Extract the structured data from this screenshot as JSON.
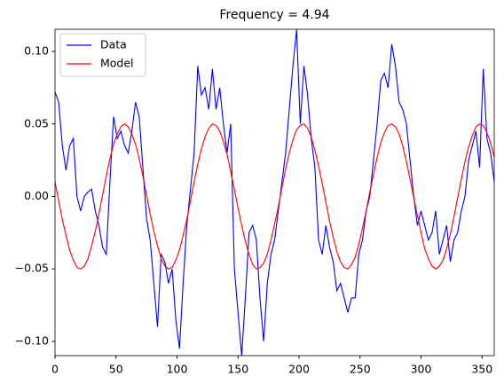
{
  "chart_data": {
    "type": "line",
    "title": "Frequency = 4.94",
    "x": [
      0,
      3,
      6,
      9,
      12,
      15,
      18,
      21,
      24,
      27,
      30,
      33,
      36,
      39,
      42,
      45,
      48,
      51,
      54,
      57,
      60,
      63,
      66,
      69,
      72,
      75,
      78,
      81,
      84,
      87,
      90,
      93,
      96,
      99,
      102,
      105,
      108,
      111,
      114,
      117,
      120,
      123,
      126,
      129,
      132,
      135,
      138,
      141,
      144,
      147,
      150,
      153,
      156,
      159,
      162,
      165,
      168,
      171,
      174,
      177,
      180,
      183,
      186,
      189,
      192,
      195,
      198,
      201,
      204,
      207,
      210,
      213,
      216,
      219,
      222,
      225,
      228,
      231,
      234,
      237,
      240,
      243,
      246,
      249,
      252,
      255,
      258,
      261,
      264,
      267,
      270,
      273,
      276,
      279,
      282,
      285,
      288,
      291,
      294,
      297,
      300,
      303,
      306,
      309,
      312,
      315,
      318,
      321,
      324,
      327,
      330,
      333,
      336,
      339,
      342,
      345,
      348,
      351,
      354,
      357,
      360
    ],
    "series": [
      {
        "name": "Data",
        "color": "#0000ff",
        "values": [
          0.072,
          0.065,
          0.035,
          0.018,
          0.035,
          0.04,
          0.0,
          -0.01,
          0.0,
          0.003,
          0.005,
          -0.01,
          -0.02,
          -0.035,
          -0.04,
          0.01,
          0.055,
          0.04,
          0.045,
          0.035,
          0.03,
          0.045,
          0.065,
          0.055,
          0.02,
          -0.015,
          -0.03,
          -0.06,
          -0.09,
          -0.04,
          -0.045,
          -0.06,
          -0.05,
          -0.085,
          -0.105,
          -0.06,
          -0.02,
          0.005,
          0.03,
          0.09,
          0.07,
          0.075,
          0.06,
          0.088,
          0.06,
          0.075,
          0.05,
          0.03,
          0.05,
          -0.05,
          -0.08,
          -0.11,
          -0.07,
          -0.025,
          -0.02,
          -0.03,
          -0.07,
          -0.1,
          -0.06,
          -0.04,
          -0.03,
          -0.01,
          0.01,
          0.03,
          0.06,
          0.09,
          0.115,
          0.05,
          0.09,
          0.07,
          0.04,
          0.02,
          -0.03,
          -0.04,
          -0.02,
          -0.035,
          -0.045,
          -0.065,
          -0.06,
          -0.07,
          -0.08,
          -0.07,
          -0.07,
          -0.04,
          -0.03,
          -0.01,
          0.0,
          0.025,
          0.05,
          0.08,
          0.085,
          0.075,
          0.105,
          0.09,
          0.065,
          0.06,
          0.05,
          0.025,
          0.0,
          -0.02,
          -0.01,
          -0.02,
          -0.03,
          -0.025,
          -0.01,
          -0.04,
          -0.03,
          -0.02,
          -0.045,
          -0.03,
          -0.025,
          -0.01,
          0.0,
          0.025,
          0.035,
          0.045,
          0.02,
          0.088,
          0.04,
          0.03,
          0.01
        ]
      },
      {
        "name": "Model",
        "color": "#ff0000",
        "values": [
          0.01,
          -0.003,
          -0.016,
          -0.027,
          -0.037,
          -0.044,
          -0.049,
          -0.05,
          -0.048,
          -0.043,
          -0.034,
          -0.024,
          -0.012,
          0.001,
          0.014,
          0.026,
          0.036,
          0.043,
          0.048,
          0.05,
          0.048,
          0.043,
          0.036,
          0.026,
          0.014,
          0.001,
          -0.012,
          -0.024,
          -0.034,
          -0.043,
          -0.048,
          -0.05,
          -0.049,
          -0.044,
          -0.037,
          -0.027,
          -0.016,
          -0.003,
          0.01,
          0.022,
          0.033,
          0.041,
          0.047,
          0.05,
          0.049,
          0.045,
          0.038,
          0.029,
          0.017,
          0.005,
          -0.008,
          -0.02,
          -0.031,
          -0.04,
          -0.047,
          -0.05,
          -0.049,
          -0.046,
          -0.04,
          -0.03,
          -0.019,
          -0.007,
          0.006,
          0.019,
          0.03,
          0.039,
          0.046,
          0.049,
          0.05,
          0.047,
          0.041,
          0.032,
          0.021,
          0.009,
          -0.004,
          -0.017,
          -0.028,
          -0.038,
          -0.045,
          -0.049,
          -0.05,
          -0.047,
          -0.042,
          -0.033,
          -0.022,
          -0.01,
          0.003,
          0.015,
          0.027,
          0.037,
          0.044,
          0.049,
          0.05,
          0.048,
          0.043,
          0.035,
          0.024,
          0.012,
          -0.001,
          -0.013,
          -0.025,
          -0.036,
          -0.043,
          -0.048,
          -0.05,
          -0.048,
          -0.044,
          -0.036,
          -0.026,
          -0.014,
          -0.001,
          0.012,
          0.024,
          0.034,
          0.042,
          0.048,
          0.05,
          0.049,
          0.044,
          0.037,
          0.027
        ]
      }
    ],
    "xlim": [
      0,
      360
    ],
    "xticks": [
      0,
      50,
      100,
      150,
      200,
      250,
      300,
      350
    ],
    "ylim": [
      -0.1098,
      0.1153
    ],
    "yticks": [
      {
        "value": -0.1,
        "label": "−0.10"
      },
      {
        "value": -0.05,
        "label": "−0.05"
      },
      {
        "value": 0,
        "label": "0.00"
      },
      {
        "value": 0.05,
        "label": "0.05"
      },
      {
        "value": 0.1,
        "label": "0.10"
      }
    ],
    "legend": "upper left",
    "grid": false
  }
}
